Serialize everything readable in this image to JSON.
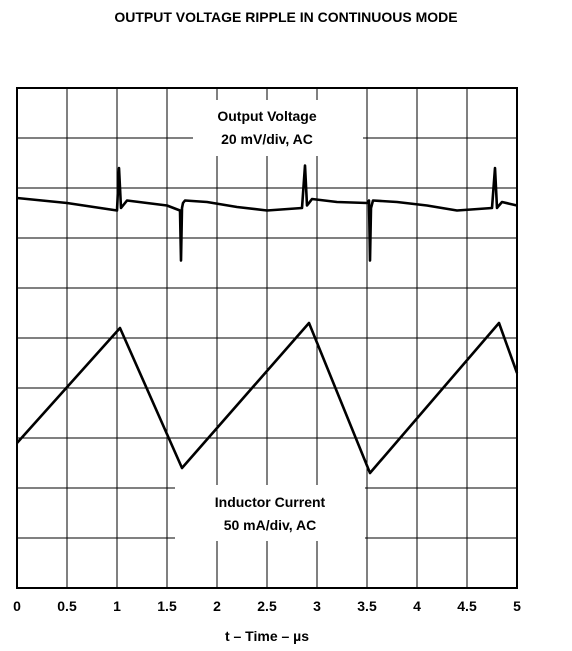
{
  "chart_data": {
    "type": "line",
    "title": "OUTPUT VOLTAGE RIPPLE IN CONTINUOUS MODE",
    "xlabel": "t – Time – µs",
    "ylabel": "",
    "xlim": [
      0,
      5
    ],
    "ylim": [
      0,
      10
    ],
    "x_ticks": [
      "0",
      "0.5",
      "1",
      "1.5",
      "2",
      "2.5",
      "3",
      "3.5",
      "4",
      "4.5",
      "5"
    ],
    "grid": true,
    "annotations": [
      {
        "lines": [
          "Output Voltage",
          "20 mV/div, AC"
        ]
      },
      {
        "lines": [
          "Inductor Current",
          "50 mA/div, AC"
        ]
      }
    ],
    "series": [
      {
        "x": [
          0,
          0.5,
          1.0,
          1.02,
          1.04,
          1.06,
          1.1,
          1.3,
          1.5,
          1.63,
          1.64,
          1.65,
          1.66,
          1.68,
          1.9,
          2.2,
          2.5,
          2.85,
          2.88,
          2.9,
          2.92,
          2.95,
          3.2,
          3.5,
          3.52,
          3.53,
          3.54,
          3.56,
          3.8,
          4.1,
          4.4,
          4.75,
          4.78,
          4.8,
          4.82,
          4.85,
          5.0
        ],
        "values": [
          7.8,
          7.7,
          7.55,
          8.4,
          7.6,
          7.65,
          7.75,
          7.7,
          7.65,
          7.55,
          6.55,
          7.6,
          7.7,
          7.75,
          7.72,
          7.62,
          7.55,
          7.6,
          8.45,
          7.65,
          7.7,
          7.78,
          7.72,
          7.7,
          7.75,
          6.55,
          7.6,
          7.75,
          7.72,
          7.65,
          7.55,
          7.6,
          8.4,
          7.6,
          7.65,
          7.72,
          7.65
        ]
      },
      {
        "x": [
          0,
          1.03,
          1.65,
          2.92,
          3.53,
          4.82,
          5.0
        ],
        "values": [
          2.9,
          5.2,
          2.4,
          5.3,
          2.3,
          5.3,
          4.3
        ]
      }
    ]
  }
}
